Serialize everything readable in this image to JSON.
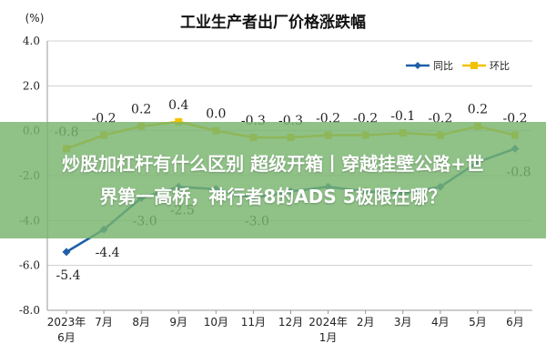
{
  "colors": {
    "yoy": "#1f5fa8",
    "mom": "#f2c200",
    "grid": "#d0d0d0",
    "overlay": "#78b46e"
  },
  "chart_data": {
    "type": "line",
    "title": "工业生产者出厂价格涨跌幅",
    "ylabel": "(%)",
    "ylim": [
      -8.0,
      4.0
    ],
    "yticks": [
      "4.0",
      "2.0",
      "0.0",
      "-2.0",
      "-4.0",
      "-6.0",
      "-8.0"
    ],
    "categories": [
      [
        "2023年",
        "6月"
      ],
      [
        "7月"
      ],
      [
        "8月"
      ],
      [
        "9月"
      ],
      [
        "10月"
      ],
      [
        "11月"
      ],
      [
        "12月"
      ],
      [
        "2024年",
        "1月"
      ],
      [
        "2月"
      ],
      [
        "3月"
      ],
      [
        "4月"
      ],
      [
        "5月"
      ],
      [
        "6月"
      ]
    ],
    "series": [
      {
        "name": "同比",
        "color": "#1f5fa8",
        "values": [
          -5.4,
          -4.4,
          -3.0,
          -2.5,
          -2.6,
          -3.0,
          -2.7,
          -2.5,
          -2.7,
          -2.8,
          -2.5,
          -1.4,
          -0.8
        ],
        "labels": [
          "-5.4",
          "-4.4",
          "-3.0",
          "-2.5",
          "",
          "-3.0",
          "",
          "",
          "",
          "",
          "",
          "",
          "-0.8"
        ]
      },
      {
        "name": "环比",
        "color": "#f2c200",
        "values": [
          -0.8,
          -0.2,
          0.2,
          0.4,
          0.0,
          -0.3,
          -0.3,
          -0.2,
          -0.2,
          -0.1,
          -0.2,
          0.2,
          -0.2
        ],
        "labels": [
          "-0.8",
          "-0.2",
          "0.2",
          "0.4",
          "0.0",
          "-0.3",
          "-0.3",
          "-0.2",
          "-0.2",
          "-0.1",
          "-0.2",
          "0.2",
          "-0.2"
        ]
      }
    ],
    "legend": "top-right",
    "grid": true
  },
  "overlay": {
    "line1": "炒股加杠杆有什么区别 超级开箱丨穿越挂壁公路+世",
    "line2": "界第一高桥，神行者8的ADS 5极限在哪？"
  }
}
